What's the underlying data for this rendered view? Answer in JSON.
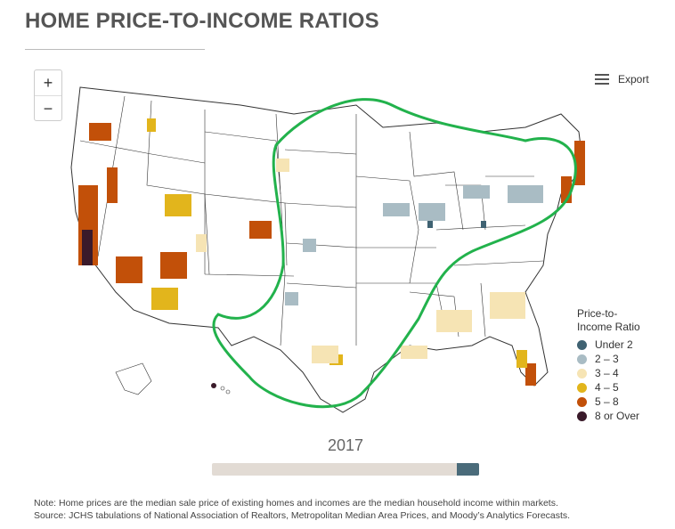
{
  "title": "HOME PRICE-TO-INCOME RATIOS",
  "zoom": {
    "in_label": "+",
    "out_label": "−"
  },
  "export": {
    "label": "Export",
    "icon": "hamburger-menu-icon"
  },
  "legend": {
    "title_line1": "Price-to-",
    "title_line2": "Income Ratio",
    "items": [
      {
        "label": "Under 2",
        "color": "#3f6272"
      },
      {
        "label": "2 – 3",
        "color": "#a9bcc4"
      },
      {
        "label": "3 – 4",
        "color": "#f6e4b4"
      },
      {
        "label": "4 – 5",
        "color": "#e2b51c"
      },
      {
        "label": "5 – 8",
        "color": "#c25009"
      },
      {
        "label": "8 or Over",
        "color": "#3a1a2a"
      }
    ]
  },
  "timeline": {
    "year": "2017",
    "progress": 0.92
  },
  "note": {
    "line1": "Note: Home prices are the median sale price of existing homes and incomes are the median household income within markets.",
    "line2": "Source: JCHS tabulations of National Association of Realtors, Metropolitan Median Area Prices, and Moody’s Analytics Forecasts."
  },
  "annotation": {
    "color": "#22b24c",
    "description": "central US highlighted region"
  }
}
